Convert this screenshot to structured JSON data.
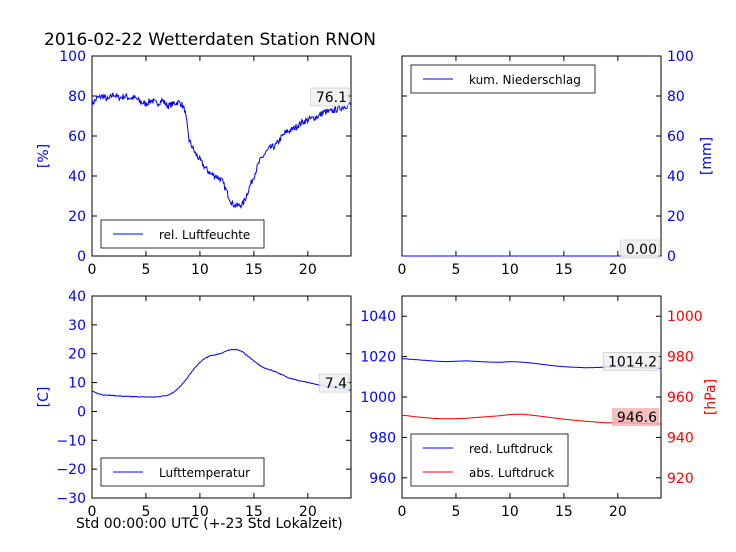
{
  "figure": {
    "title": "2016-02-22 Wetterdaten Station RNON",
    "xlabel": "Std 00:00:00 UTC (+-23 Std Lokalzeit)"
  },
  "colors": {
    "blue": "#0000ff",
    "red": "#ff0000",
    "label_red_box": "#f4b3b3"
  },
  "chart_data": [
    {
      "type": "line",
      "id": "humidity",
      "ylabel": "[%]",
      "xlim": [
        0,
        24
      ],
      "ylim": [
        0,
        100
      ],
      "xticks": [
        0,
        5,
        10,
        15,
        20
      ],
      "yticks": [
        0,
        20,
        40,
        60,
        80,
        100
      ],
      "legend": {
        "placement": "lower-left",
        "entries": [
          "rel. Luftfeuchte"
        ]
      },
      "value_label": "76.1",
      "series": [
        {
          "name": "rel. Luftfeuchte",
          "color": "#0000ff",
          "x": [
            0,
            0.5,
            1,
            1.5,
            2,
            2.5,
            3,
            3.5,
            4,
            4.5,
            5,
            5.5,
            6,
            6.5,
            7,
            7.5,
            8,
            8.3,
            8.6,
            9,
            9.5,
            10,
            10.5,
            11,
            11.5,
            12,
            12.5,
            13,
            13.5,
            14,
            14.5,
            15,
            15.5,
            16,
            16.5,
            17,
            17.5,
            18,
            18.5,
            19,
            19.5,
            20,
            20.5,
            21,
            21.5,
            22,
            22.5,
            23,
            23.5,
            24
          ],
          "y": [
            76,
            79,
            80,
            78,
            81,
            79,
            80,
            79,
            79,
            77,
            76,
            78,
            76,
            78,
            75,
            76,
            77,
            76,
            73,
            58,
            52,
            48,
            44,
            41,
            40,
            38,
            32,
            26,
            25,
            26,
            33,
            40,
            47,
            51,
            54,
            55,
            59,
            62,
            63,
            65,
            67,
            68,
            69,
            70,
            72,
            72,
            73,
            74,
            75,
            76
          ]
        }
      ]
    },
    {
      "type": "line",
      "id": "precipitation",
      "ylabel": "[mm]",
      "xlim": [
        0,
        24
      ],
      "ylim": [
        0,
        100
      ],
      "xticks": [
        0,
        5,
        10,
        15,
        20
      ],
      "yticks": [
        0,
        20,
        40,
        60,
        80,
        100
      ],
      "yaxis_side": "right",
      "legend": {
        "placement": "upper-left",
        "entries": [
          "kum. Niederschlag"
        ]
      },
      "value_label": "0.00",
      "series": [
        {
          "name": "kum. Niederschlag",
          "color": "#0000ff",
          "x": [
            0,
            24
          ],
          "y": [
            0,
            0
          ]
        }
      ]
    },
    {
      "type": "line",
      "id": "temperature",
      "ylabel": "[C]",
      "xlim": [
        0,
        24
      ],
      "ylim": [
        -30,
        40
      ],
      "xticks": [
        0,
        5,
        10,
        15,
        20
      ],
      "yticks": [
        -30,
        -20,
        -10,
        0,
        10,
        20,
        30,
        40
      ],
      "legend": {
        "placement": "lower-left",
        "entries": [
          "Lufttemperatur"
        ]
      },
      "value_label": "7.4",
      "series": [
        {
          "name": "Lufttemperatur",
          "color": "#0000ff",
          "x": [
            0,
            0.5,
            1,
            2,
            3,
            4,
            5,
            6,
            6.5,
            7,
            7.5,
            8,
            8.5,
            9,
            9.5,
            10,
            10.5,
            11,
            11.5,
            12,
            12.5,
            13,
            13.5,
            14,
            14.5,
            15,
            15.5,
            16,
            17,
            18,
            19,
            20,
            21,
            22,
            23,
            24
          ],
          "y": [
            7,
            6.2,
            5.8,
            5.5,
            5.2,
            5.1,
            5.0,
            5.0,
            5.3,
            5.6,
            6.5,
            8,
            10,
            12.5,
            15,
            17,
            18.5,
            19.3,
            19.7,
            20.2,
            21,
            21.5,
            21.4,
            20.5,
            19,
            17.5,
            16,
            15,
            13.8,
            12,
            10.8,
            10,
            9.2,
            8.6,
            8.0,
            7.4
          ]
        }
      ]
    },
    {
      "type": "line",
      "id": "pressure",
      "ylabel_right": "[hPa]",
      "xlim": [
        0,
        24
      ],
      "ylim": [
        950,
        1050
      ],
      "ylim_right": [
        910,
        1010
      ],
      "xticks": [
        0,
        5,
        10,
        15,
        20
      ],
      "yticks": [
        960,
        980,
        1000,
        1020,
        1040
      ],
      "yticks_right": [
        920,
        940,
        960,
        980,
        1000
      ],
      "legend": {
        "placement": "lower-left",
        "entries": [
          "red. Luftdruck",
          "abs. Luftdruck"
        ]
      },
      "value_labels": [
        "1014.2",
        "946.6"
      ],
      "series": [
        {
          "name": "red. Luftdruck",
          "color": "#0000ff",
          "axis": "left",
          "x": [
            0,
            1,
            2,
            3,
            4,
            5,
            6,
            7,
            8,
            9,
            10,
            11,
            12,
            13,
            14,
            15,
            16,
            17,
            18,
            19,
            20,
            21,
            22,
            23,
            24
          ],
          "y": [
            1019,
            1018.6,
            1018.2,
            1017.8,
            1017.5,
            1017.7,
            1017.9,
            1017.6,
            1017.3,
            1017.2,
            1017.5,
            1017.3,
            1016.8,
            1016.2,
            1015.5,
            1015.0,
            1014.7,
            1014.5,
            1014.6,
            1014.8,
            1014.9,
            1014.7,
            1014.6,
            1014.4,
            1014.2
          ]
        },
        {
          "name": "abs. Luftdruck",
          "color": "#ff0000",
          "axis": "right",
          "x": [
            0,
            1,
            2,
            3,
            4,
            5,
            6,
            7,
            8,
            9,
            10,
            11,
            12,
            13,
            14,
            15,
            16,
            17,
            18,
            19,
            20,
            21,
            22,
            23,
            24
          ],
          "y": [
            951.0,
            950.4,
            949.8,
            949.4,
            949.2,
            949.3,
            949.5,
            949.9,
            950.3,
            950.7,
            951.3,
            951.5,
            951.0,
            950.4,
            949.7,
            949.0,
            948.5,
            948.0,
            947.6,
            947.2,
            947.3,
            947.2,
            947.0,
            946.8,
            946.6
          ]
        }
      ]
    }
  ]
}
